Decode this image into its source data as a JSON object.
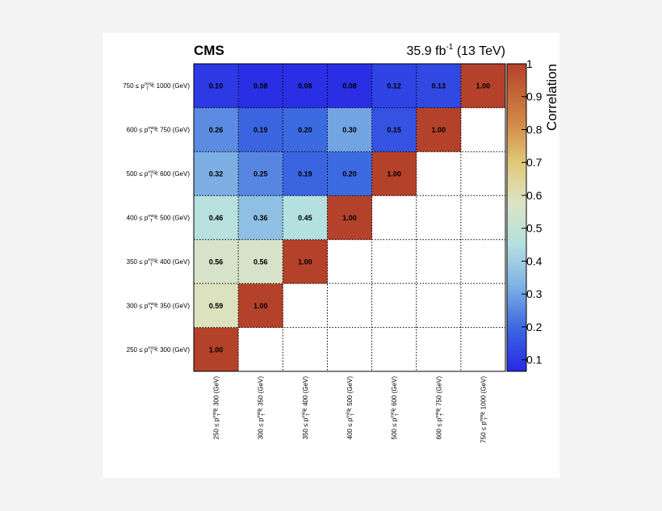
{
  "chart_data": {
    "type": "heatmap",
    "experiment_label": "CMS",
    "luminosity_label": "35.9 fb",
    "luminosity_sup": "-1",
    "energy_label": " (13 TeV)",
    "colorbar_label": "Correlation",
    "colorbar_range": [
      0.065,
      1.0
    ],
    "colorbar_ticks": [
      "1",
      "0.9",
      "0.8",
      "0.7",
      "0.6",
      "0.5",
      "0.4",
      "0.3",
      "0.2",
      "0.1"
    ],
    "colorbar_tick_values": [
      1.0,
      0.9,
      0.8,
      0.7,
      0.6,
      0.5,
      0.4,
      0.3,
      0.2,
      0.1
    ],
    "bins": [
      {
        "low": "250",
        "high": "300"
      },
      {
        "low": "300",
        "high": "350"
      },
      {
        "low": "350",
        "high": "400"
      },
      {
        "low": "400",
        "high": "500"
      },
      {
        "low": "500",
        "high": "600"
      },
      {
        "low": "600",
        "high": "750"
      },
      {
        "low": "750",
        "high": "1000"
      }
    ],
    "label_parts": {
      "le": "≤ p",
      "sup": "miss",
      "sub": "T",
      "lt": "<",
      "unit": "(GeV)"
    },
    "rows": [
      {
        "y_bin": "250-300",
        "values": [
          1.0,
          null,
          null,
          null,
          null,
          null,
          null
        ]
      },
      {
        "y_bin": "300-350",
        "values": [
          0.59,
          1.0,
          null,
          null,
          null,
          null,
          null
        ]
      },
      {
        "y_bin": "350-400",
        "values": [
          0.56,
          0.56,
          1.0,
          null,
          null,
          null,
          null
        ]
      },
      {
        "y_bin": "400-500",
        "values": [
          0.46,
          0.36,
          0.45,
          1.0,
          null,
          null,
          null
        ]
      },
      {
        "y_bin": "500-600",
        "values": [
          0.32,
          0.25,
          0.19,
          0.2,
          1.0,
          null,
          null
        ]
      },
      {
        "y_bin": "600-750",
        "values": [
          0.26,
          0.19,
          0.2,
          0.3,
          0.15,
          1.0,
          null
        ]
      },
      {
        "y_bin": "750-1000",
        "values": [
          0.1,
          0.08,
          0.08,
          0.08,
          0.12,
          0.13,
          1.0
        ]
      }
    ],
    "value_labels": [
      [
        "1.00",
        "",
        "",
        "",
        "",
        "",
        ""
      ],
      [
        "0.59",
        "1.00",
        "",
        "",
        "",
        "",
        ""
      ],
      [
        "0.56",
        "0.56",
        "1.00",
        "",
        "",
        "",
        ""
      ],
      [
        "0.46",
        "0.36",
        "0.45",
        "1.00",
        "",
        "",
        ""
      ],
      [
        "0.32",
        "0.25",
        "0.19",
        "0.20",
        "1.00",
        "",
        ""
      ],
      [
        "0.26",
        "0.19",
        "0.20",
        "0.30",
        "0.15",
        "1.00",
        ""
      ],
      [
        "0.10",
        "0.08",
        "0.08",
        "0.08",
        "0.12",
        "0.13",
        "1.00"
      ]
    ],
    "palette_stops": [
      {
        "v": 0.065,
        "color": "#2828e6"
      },
      {
        "v": 0.2,
        "color": "#3c6ae0"
      },
      {
        "v": 0.33,
        "color": "#82b4e4"
      },
      {
        "v": 0.45,
        "color": "#b4e0e0"
      },
      {
        "v": 0.58,
        "color": "#dce4c4"
      },
      {
        "v": 0.7,
        "color": "#e0c878"
      },
      {
        "v": 0.82,
        "color": "#d28a46"
      },
      {
        "v": 1.0,
        "color": "#b4412a"
      }
    ]
  }
}
